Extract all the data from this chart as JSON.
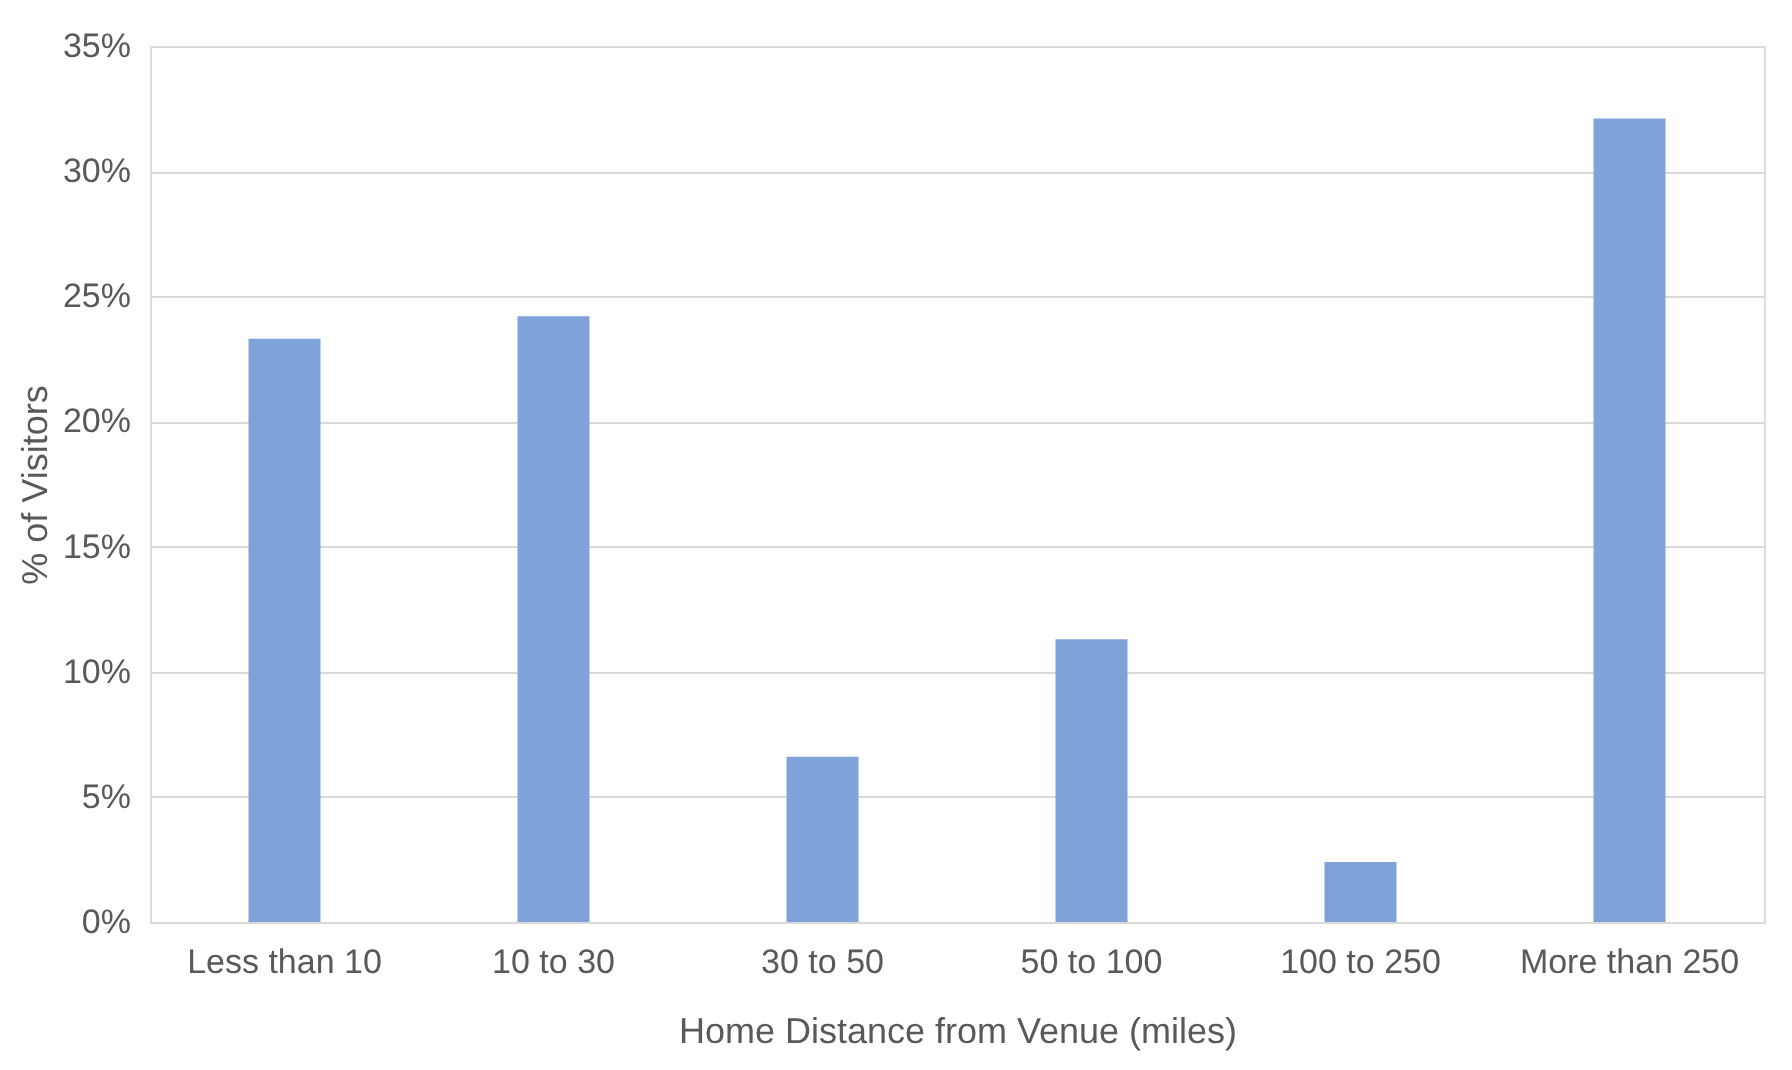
{
  "chart_data": {
    "type": "bar",
    "xlabel": "Home  Distance from Venue (miles)",
    "ylabel": "% of Visitors",
    "categories": [
      "Less than 10",
      "10 to 30",
      "30 to 50",
      "50 to 100",
      "100 to 250",
      "More than 250"
    ],
    "values": [
      23.3,
      24.2,
      6.6,
      11.3,
      2.4,
      32.1
    ],
    "color": "#7fa2d8",
    "ylim": [
      0,
      35
    ],
    "yticks": [
      {
        "value": 0,
        "label": "0%"
      },
      {
        "value": 5,
        "label": "5%"
      },
      {
        "value": 10,
        "label": "10%"
      },
      {
        "value": 15,
        "label": "15%"
      },
      {
        "value": 20,
        "label": "20%"
      },
      {
        "value": 25,
        "label": "25%"
      },
      {
        "value": 30,
        "label": "30%"
      },
      {
        "value": 35,
        "label": "35%"
      }
    ],
    "grid": "y"
  }
}
